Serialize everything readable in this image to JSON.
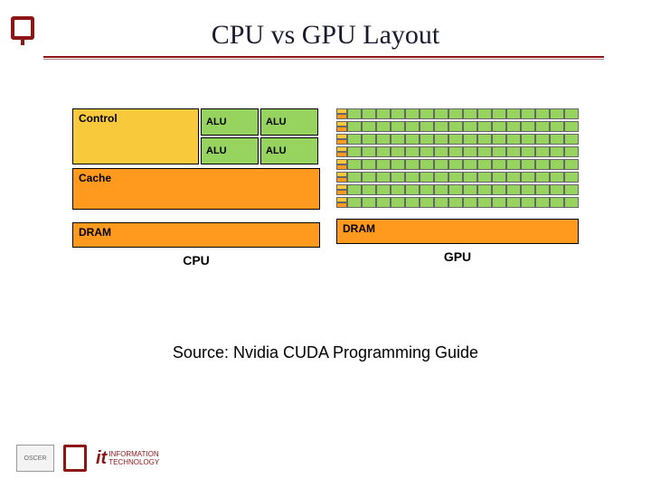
{
  "title": "CPU vs GPU Layout",
  "colors": {
    "control_bg": "#f8c93a",
    "alu_bg": "#96d35f",
    "cache_bg": "#ff9a1f",
    "dram_bg": "#ff9a1f",
    "gpu_ctrl_bg": "#f8c93a",
    "gpu_cache_bg": "#ff9a1f",
    "gpu_alu_bg": "#96d35f",
    "accent": "#8c1515"
  },
  "cpu": {
    "control_label": "Control",
    "alu_label": "ALU",
    "cache_label": "Cache",
    "dram_label": "DRAM",
    "caption": "CPU"
  },
  "gpu": {
    "rows": 8,
    "alus_per_row": 16,
    "dram_label": "DRAM",
    "caption": "GPU"
  },
  "source": "Source: Nvidia CUDA Programming Guide",
  "footer": {
    "oscer": "OSCER",
    "it": "INFORMATION TECHNOLOGY"
  }
}
